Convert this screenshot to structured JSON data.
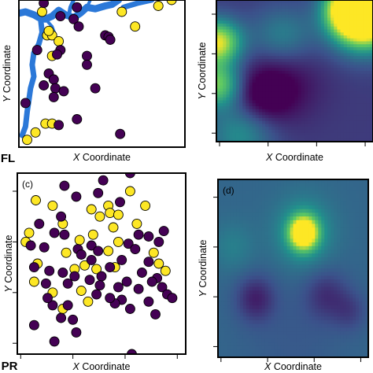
{
  "rows": [
    {
      "site_label": "FL"
    },
    {
      "site_label": "PR"
    }
  ],
  "colors": {
    "group_a": "#440154",
    "group_b": "#FDE725",
    "river": "#2B78D8",
    "frame": "#000000",
    "heatmap_low": "#440154",
    "heatmap_mid": "#21918C",
    "heatmap_high": "#FDE725"
  },
  "chart_data": [
    {
      "type": "scatter",
      "panel_label": "",
      "xlabel_italic": "X",
      "xlabel": "Coordinate",
      "ylabel_italic": "Y",
      "ylabel": "Coordinate",
      "xlim": [
        0,
        1
      ],
      "ylim": [
        0,
        1
      ],
      "show_tick_labels": false,
      "river": [
        {
          "points": [
            [
              0.0,
              0.91
            ],
            [
              0.04,
              0.92
            ],
            [
              0.09,
              0.9
            ],
            [
              0.12,
              0.88
            ],
            [
              0.16,
              0.87
            ],
            [
              0.2,
              0.89
            ],
            [
              0.24,
              0.93
            ],
            [
              0.28,
              0.9
            ],
            [
              0.33,
              0.88
            ],
            [
              0.37,
              0.91
            ],
            [
              0.41,
              0.95
            ],
            [
              0.46,
              0.94
            ],
            [
              0.52,
              0.96
            ],
            [
              0.56,
              0.97
            ],
            [
              0.6,
              1.0
            ]
          ],
          "width": 9
        },
        {
          "points": [
            [
              0.13,
              0.88
            ],
            [
              0.14,
              0.78
            ],
            [
              0.12,
              0.7
            ],
            [
              0.09,
              0.64
            ],
            [
              0.08,
              0.56
            ],
            [
              0.09,
              0.48
            ],
            [
              0.07,
              0.4
            ],
            [
              0.06,
              0.32
            ],
            [
              0.05,
              0.24
            ],
            [
              0.04,
              0.14
            ],
            [
              0.02,
              0.08
            ]
          ],
          "width": 7
        },
        {
          "points": [
            [
              0.3,
              0.89
            ],
            [
              0.31,
              0.95
            ],
            [
              0.33,
              1.0
            ]
          ],
          "width": 5
        },
        {
          "points": [
            [
              0.41,
              0.95
            ],
            [
              0.43,
              1.0
            ]
          ],
          "width": 4
        },
        {
          "points": [
            [
              0.63,
              0.95
            ],
            [
              0.72,
              0.98
            ],
            [
              0.8,
              1.0
            ]
          ],
          "width": 7
        },
        {
          "points": [
            [
              0.16,
              0.87
            ],
            [
              0.2,
              0.82
            ],
            [
              0.22,
              0.76
            ]
          ],
          "width": 4
        }
      ],
      "groups": [
        {
          "color_key": "group_b",
          "points": [
            [
              0.14,
              0.92
            ],
            [
              0.17,
              0.76
            ],
            [
              0.2,
              0.76
            ],
            [
              0.24,
              0.72
            ],
            [
              0.2,
              0.62
            ],
            [
              0.62,
              0.92
            ],
            [
              0.7,
              0.82
            ],
            [
              0.84,
              0.96
            ],
            [
              0.92,
              1.0
            ],
            [
              0.1,
              0.1
            ],
            [
              0.16,
              0.16
            ],
            [
              0.2,
              0.16
            ],
            [
              0.05,
              0.05
            ],
            [
              0.18,
              0.79
            ]
          ]
        },
        {
          "color_key": "group_a",
          "points": [
            [
              0.15,
              0.98
            ],
            [
              0.25,
              0.89
            ],
            [
              0.33,
              0.87
            ],
            [
              0.35,
              0.95
            ],
            [
              0.36,
              0.82
            ],
            [
              0.52,
              0.76
            ],
            [
              0.54,
              0.75
            ],
            [
              0.25,
              0.66
            ],
            [
              0.23,
              0.63
            ],
            [
              0.11,
              0.66
            ],
            [
              0.18,
              0.5
            ],
            [
              0.21,
              0.46
            ],
            [
              0.15,
              0.42
            ],
            [
              0.22,
              0.4
            ],
            [
              0.46,
              0.4
            ],
            [
              0.41,
              0.62
            ],
            [
              0.41,
              0.56
            ],
            [
              0.35,
              0.19
            ],
            [
              0.24,
              0.15
            ],
            [
              0.55,
              0.73
            ],
            [
              0.61,
              0.09
            ],
            [
              0.21,
              0.34
            ],
            [
              0.27,
              0.38
            ],
            [
              0.04,
              0.3
            ]
          ]
        }
      ]
    },
    {
      "type": "heatmap",
      "panel_label": "",
      "xlabel_italic": "X",
      "xlabel": "Coordinate",
      "ylabel_italic": "Y",
      "ylabel": "Coordinate",
      "xlim": [
        0,
        1
      ],
      "ylim": [
        0,
        1
      ],
      "value_range": [
        0,
        1
      ],
      "background": 0.18,
      "field": [
        [
          0.9,
          0.95,
          0.12,
          1.3
        ],
        [
          0.95,
          0.85,
          0.15,
          0.9
        ],
        [
          0.0,
          0.7,
          0.11,
          0.8
        ],
        [
          0.0,
          0.4,
          0.11,
          0.6
        ],
        [
          0.42,
          0.75,
          0.14,
          0.25
        ],
        [
          0.3,
          0.32,
          0.12,
          -0.2
        ],
        [
          0.4,
          0.4,
          0.18,
          -0.18
        ],
        [
          0.15,
          0.05,
          0.15,
          0.3
        ]
      ]
    },
    {
      "type": "scatter",
      "panel_label": "(c)",
      "xlabel_italic": "X",
      "xlabel": "Coordinate",
      "ylabel_italic": "Y",
      "ylabel": "Coordinate",
      "xlim": [
        0,
        1
      ],
      "ylim": [
        0,
        1
      ],
      "show_tick_labels": false,
      "groups": [
        {
          "color_key": "group_b",
          "points": [
            [
              0.11,
              0.85
            ],
            [
              0.21,
              0.82
            ],
            [
              0.07,
              0.67
            ],
            [
              0.05,
              0.62
            ],
            [
              0.27,
              0.72
            ],
            [
              0.37,
              0.63
            ],
            [
              0.44,
              0.8
            ],
            [
              0.49,
              0.76
            ],
            [
              0.54,
              0.82
            ],
            [
              0.55,
              0.78
            ],
            [
              0.67,
              0.9
            ],
            [
              0.6,
              0.77
            ],
            [
              0.45,
              0.66
            ],
            [
              0.57,
              0.7
            ],
            [
              0.6,
              0.62
            ],
            [
              0.76,
              0.82
            ],
            [
              0.71,
              0.72
            ],
            [
              0.34,
              0.47
            ],
            [
              0.29,
              0.56
            ],
            [
              0.12,
              0.5
            ],
            [
              0.4,
              0.49
            ],
            [
              0.54,
              0.57
            ],
            [
              0.58,
              0.48
            ],
            [
              0.47,
              0.47
            ],
            [
              0.88,
              0.46
            ],
            [
              0.81,
              0.56
            ],
            [
              0.84,
              0.5
            ],
            [
              0.38,
              0.35
            ],
            [
              0.42,
              0.29
            ],
            [
              0.21,
              0.34
            ],
            [
              0.27,
              0.25
            ],
            [
              0.1,
              0.4
            ]
          ]
        },
        {
          "color_key": "group_a",
          "points": [
            [
              0.51,
              0.96
            ],
            [
              0.67,
              1.0
            ],
            [
              0.28,
              0.93
            ],
            [
              0.48,
              0.89
            ],
            [
              0.35,
              0.87
            ],
            [
              0.61,
              0.84
            ],
            [
              0.26,
              0.76
            ],
            [
              0.13,
              0.72
            ],
            [
              0.22,
              0.67
            ],
            [
              0.28,
              0.66
            ],
            [
              0.08,
              0.6
            ],
            [
              0.16,
              0.59
            ],
            [
              0.1,
              0.48
            ],
            [
              0.19,
              0.46
            ],
            [
              0.17,
              0.39
            ],
            [
              0.27,
              0.45
            ],
            [
              0.3,
              0.39
            ],
            [
              0.36,
              0.58
            ],
            [
              0.44,
              0.6
            ],
            [
              0.48,
              0.57
            ],
            [
              0.44,
              0.52
            ],
            [
              0.5,
              0.43
            ],
            [
              0.55,
              0.48
            ],
            [
              0.62,
              0.52
            ],
            [
              0.66,
              0.61
            ],
            [
              0.7,
              0.58
            ],
            [
              0.72,
              0.66
            ],
            [
              0.78,
              0.65
            ],
            [
              0.84,
              0.62
            ],
            [
              0.87,
              0.68
            ],
            [
              0.78,
              0.51
            ],
            [
              0.74,
              0.45
            ],
            [
              0.83,
              0.42
            ],
            [
              0.86,
              0.37
            ],
            [
              0.89,
              0.33
            ],
            [
              0.72,
              0.36
            ],
            [
              0.65,
              0.4
            ],
            [
              0.6,
              0.37
            ],
            [
              0.49,
              0.38
            ],
            [
              0.43,
              0.41
            ],
            [
              0.3,
              0.27
            ],
            [
              0.26,
              0.2
            ],
            [
              0.33,
              0.19
            ],
            [
              0.35,
              0.12
            ],
            [
              0.22,
              0.07
            ],
            [
              0.67,
              0.25
            ],
            [
              0.62,
              0.3
            ],
            [
              0.58,
              0.28
            ],
            [
              0.78,
              0.29
            ],
            [
              0.82,
              0.22
            ],
            [
              0.68,
              0.0
            ],
            [
              0.92,
              0.31
            ],
            [
              0.21,
              0.27
            ],
            [
              0.47,
              0.33
            ],
            [
              0.55,
              0.31
            ],
            [
              0.18,
              0.31
            ],
            [
              0.1,
              0.16
            ],
            [
              0.8,
              0.4
            ],
            [
              0.38,
              0.55
            ],
            [
              0.34,
              0.43
            ]
          ]
        }
      ]
    },
    {
      "type": "heatmap",
      "panel_label": "(d)",
      "xlabel_italic": "X",
      "xlabel": "Coordinate",
      "ylabel_italic": "Y",
      "ylabel": "Coordinate",
      "xlim": [
        0,
        1
      ],
      "ylim": [
        0,
        1
      ],
      "value_range": [
        0,
        1
      ],
      "background": 0.33,
      "field": [
        [
          0.57,
          0.7,
          0.06,
          0.95
        ],
        [
          0.57,
          0.7,
          0.13,
          0.25
        ],
        [
          0.1,
          0.62,
          0.1,
          0.1
        ],
        [
          0.25,
          0.33,
          0.09,
          -0.22
        ],
        [
          0.72,
          0.35,
          0.1,
          -0.17
        ],
        [
          0.88,
          0.26,
          0.08,
          -0.12
        ],
        [
          0.5,
          0.1,
          0.25,
          -0.05
        ]
      ]
    }
  ]
}
